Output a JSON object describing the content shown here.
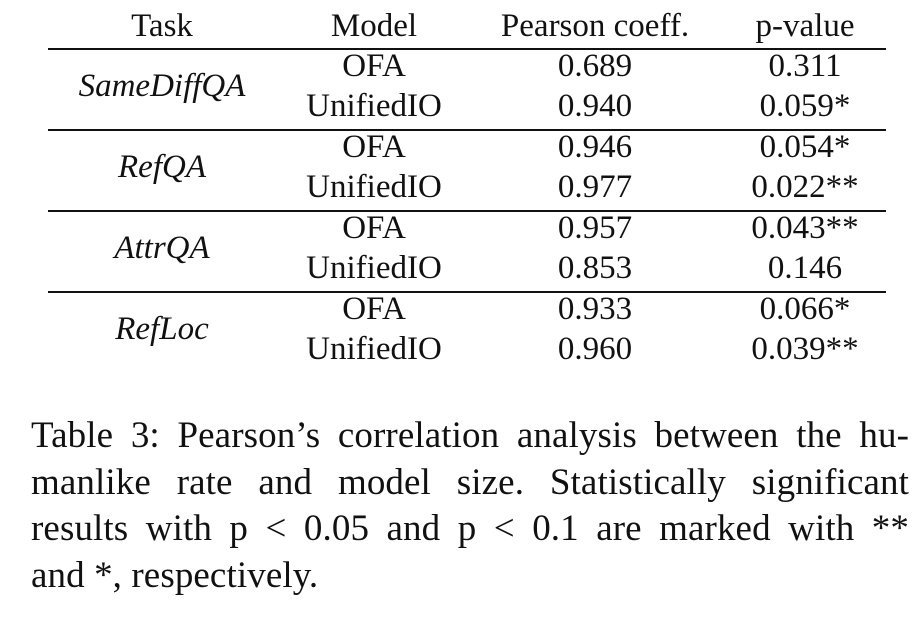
{
  "table": {
    "headers": [
      "Task",
      "Model",
      "Pearson coeff.",
      "p-value"
    ],
    "groups": [
      {
        "task": "SameDiffQA",
        "rows": [
          {
            "model": "OFA",
            "pearson": "0.689",
            "p": "0.311"
          },
          {
            "model": "UnifiedIO",
            "pearson": "0.940",
            "p": "0.059*"
          }
        ]
      },
      {
        "task": "RefQA",
        "rows": [
          {
            "model": "OFA",
            "pearson": "0.946",
            "p": "0.054*"
          },
          {
            "model": "UnifiedIO",
            "pearson": "0.977",
            "p": "0.022**"
          }
        ]
      },
      {
        "task": "AttrQA",
        "rows": [
          {
            "model": "OFA",
            "pearson": "0.957",
            "p": "0.043**"
          },
          {
            "model": "UnifiedIO",
            "pearson": "0.853",
            "p": "0.146"
          }
        ]
      },
      {
        "task": "RefLoc",
        "rows": [
          {
            "model": "OFA",
            "pearson": "0.933",
            "p": "0.066*"
          },
          {
            "model": "UnifiedIO",
            "pearson": "0.960",
            "p": "0.039**"
          }
        ]
      }
    ]
  },
  "caption": {
    "lines": [
      "Table 3: Pearson’s correlation analysis between the hu-",
      "manlike rate and model size.  Statistically significant",
      "results with p < 0.05 and p < 0.1 are marked with **",
      "and *, respectively."
    ]
  }
}
